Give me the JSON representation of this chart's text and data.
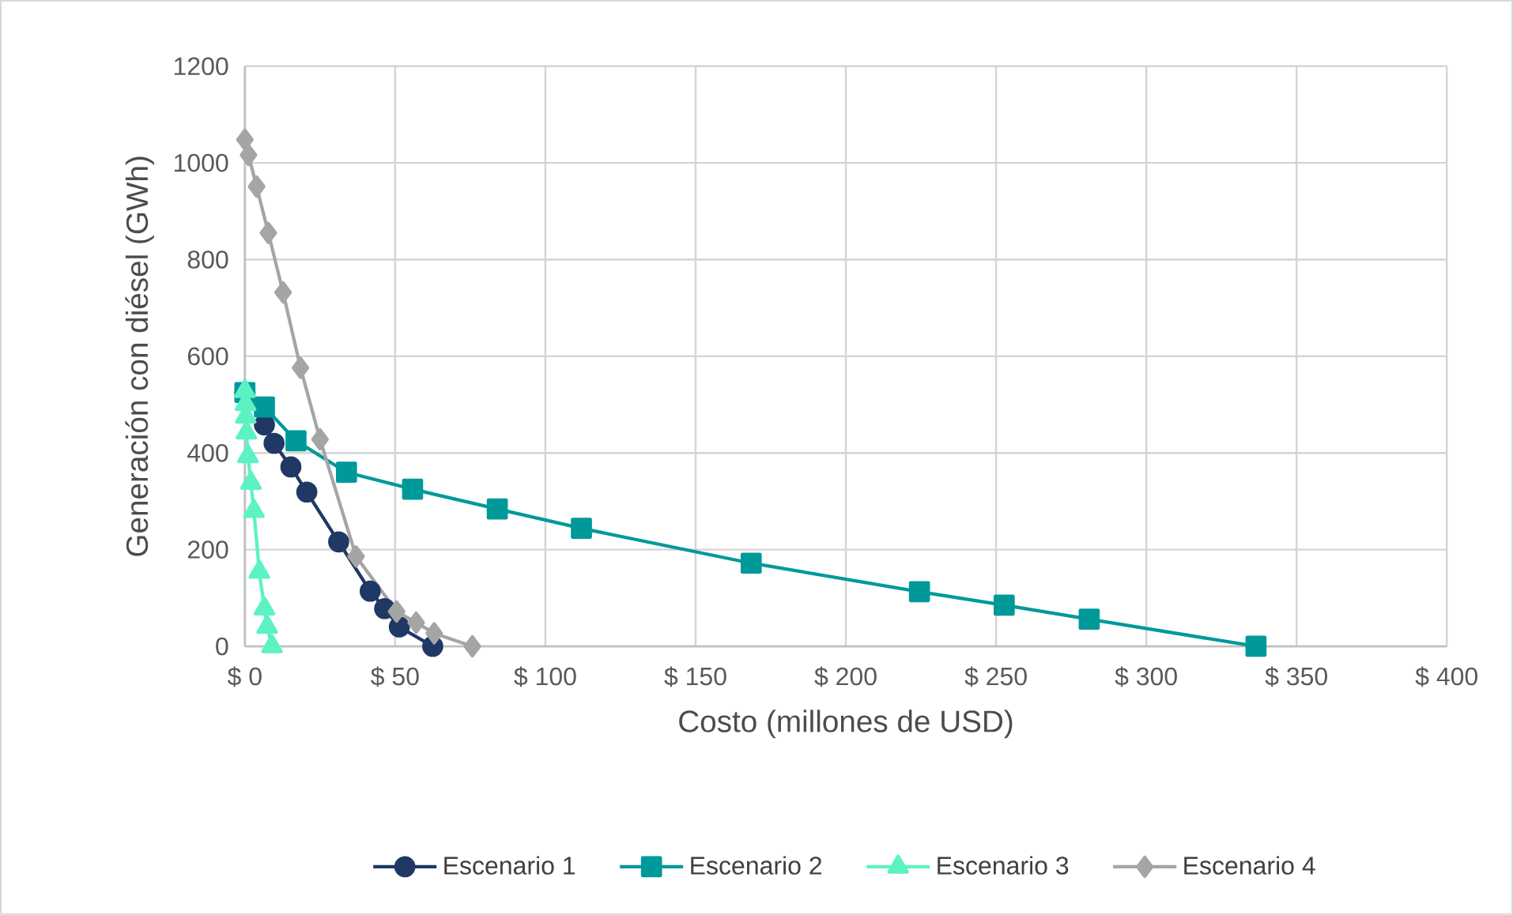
{
  "chart_data": {
    "type": "line",
    "xlabel": "Costo (millones de USD)",
    "ylabel": "Generación con diésel (GWh)",
    "xlim": [
      0,
      400
    ],
    "xticks": [
      {
        "value": 0,
        "label": "$ 0"
      },
      {
        "value": 50,
        "label": "$ 50"
      },
      {
        "value": 100,
        "label": "$ 100"
      },
      {
        "value": 150,
        "label": "$ 150"
      },
      {
        "value": 200,
        "label": "$ 200"
      },
      {
        "value": 250,
        "label": "$ 250"
      },
      {
        "value": 300,
        "label": "$ 300"
      },
      {
        "value": 350,
        "label": "$ 350"
      },
      {
        "value": 400,
        "label": "$ 400"
      }
    ],
    "ylim": [
      0,
      1200
    ],
    "yticks": [
      0,
      200,
      400,
      600,
      800,
      1000,
      1200
    ],
    "grid": true,
    "legend": "bottom",
    "line_style": "solid",
    "series": [
      {
        "name": "Escenario 1",
        "color": "#1f3864",
        "marker": "circle",
        "x": [
          0,
          6.5,
          9.7,
          15.3,
          20.6,
          31.2,
          41.7,
          46.5,
          51.4,
          62.5
        ],
        "values": [
          525,
          458,
          420,
          371,
          319,
          216,
          114,
          78,
          40,
          0
        ]
      },
      {
        "name": "Escenario 2",
        "color": "#00999a",
        "marker": "square",
        "x": [
          0,
          6.5,
          17,
          33.8,
          55.8,
          84,
          112,
          168.5,
          224.5,
          252.7,
          281,
          336.5
        ],
        "values": [
          525,
          495,
          425,
          360,
          325,
          284,
          244,
          172,
          113,
          85,
          56,
          0
        ]
      },
      {
        "name": "Escenario 3",
        "color": "#5cf2c4",
        "marker": "triangle",
        "x": [
          0,
          0.2,
          0.3,
          0.5,
          1,
          2,
          3,
          4.8,
          6.5,
          7.4,
          9
        ],
        "values": [
          528,
          501,
          475,
          442,
          393,
          338,
          280,
          154,
          78,
          40,
          0
        ]
      },
      {
        "name": "Escenario 4",
        "color": "#a5a5a5",
        "marker": "diamond",
        "x": [
          0,
          1.2,
          3.9,
          7.8,
          12.7,
          18.5,
          25,
          37,
          50.5,
          57,
          63,
          75.7
        ],
        "values": [
          1048,
          1016,
          951,
          855,
          732,
          576,
          428,
          186,
          72,
          49,
          27,
          0
        ]
      }
    ]
  }
}
